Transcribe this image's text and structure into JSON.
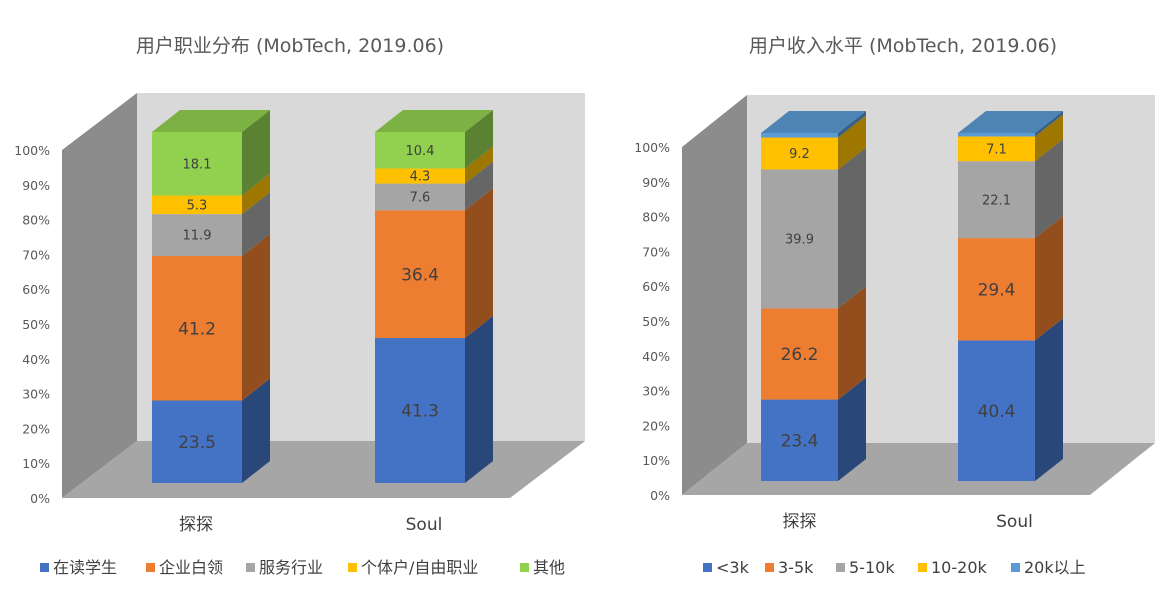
{
  "chart_data": [
    {
      "type": "bar",
      "stacked": true,
      "percent_stacked": true,
      "three_d": true,
      "title": "用户职业分布 (MobTech, 2019.06)",
      "categories": [
        "探探",
        "Soul"
      ],
      "y_tick_labels": [
        "0%",
        "10%",
        "20%",
        "30%",
        "40%",
        "50%",
        "60%",
        "70%",
        "80%",
        "90%",
        "100%"
      ],
      "ylim": [
        0,
        100
      ],
      "grid": false,
      "legend_position": "bottom",
      "series": [
        {
          "name": "在读学生",
          "values": [
            23.5,
            41.3
          ],
          "color": "#4472c4"
        },
        {
          "name": "企业白领",
          "values": [
            41.2,
            36.4
          ],
          "color": "#ed7d31"
        },
        {
          "name": "服务行业",
          "values": [
            11.9,
            7.6
          ],
          "color": "#a5a5a5"
        },
        {
          "name": "个体户/自由职业",
          "values": [
            5.3,
            4.3
          ],
          "color": "#ffc000"
        },
        {
          "name": "其他",
          "values": [
            18.1,
            10.4
          ],
          "color": "#92d050"
        }
      ]
    },
    {
      "type": "bar",
      "stacked": true,
      "percent_stacked": true,
      "three_d": true,
      "title": "用户收入水平 (MobTech, 2019.06)",
      "categories": [
        "探探",
        "Soul"
      ],
      "y_tick_labels": [
        "0%",
        "10%",
        "20%",
        "30%",
        "40%",
        "50%",
        "60%",
        "70%",
        "80%",
        "90%",
        "100%"
      ],
      "ylim": [
        0,
        100
      ],
      "grid": false,
      "legend_position": "bottom",
      "series": [
        {
          "name": "<3k",
          "values": [
            23.4,
            40.4
          ],
          "color": "#4472c4"
        },
        {
          "name": "3-5k",
          "values": [
            26.2,
            29.4
          ],
          "color": "#ed7d31"
        },
        {
          "name": "5-10k",
          "values": [
            39.9,
            22.1
          ],
          "color": "#a5a5a5"
        },
        {
          "name": "10-20k",
          "values": [
            9.2,
            7.1
          ],
          "color": "#ffc000"
        },
        {
          "name": "20k以上",
          "values": [
            1.3,
            1.0
          ],
          "color": "#5b9bd5"
        }
      ]
    }
  ]
}
